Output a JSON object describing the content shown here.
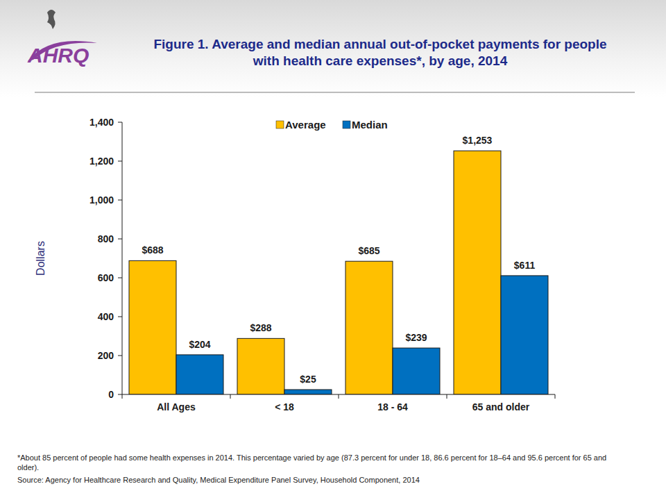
{
  "chart_data": {
    "type": "bar",
    "title": "Figure 1. Average and median annual out-of-pocket payments for people with health care expenses*, by age, 2014",
    "logo": "AHRQ",
    "y_label": "Dollars",
    "note": "*About 85 percent of people had some health expenses in 2014. This percentage varied by age (87.3 percent for under 18, 86.6 percent for 18–64 and 95.6 percent for 65 and older).",
    "source": "Source: Agency for Healthcare Research and Quality, Medical Expenditure Panel Survey, Household Component, 2014",
    "categories": [
      "All Ages",
      "< 18",
      "18 - 64",
      "65 and older"
    ],
    "series": [
      {
        "name": "Average",
        "color": "#ffc000",
        "values": [
          688,
          288,
          685,
          1253
        ],
        "value_labels": [
          "$688",
          "$288",
          "$685",
          "$1,253"
        ]
      },
      {
        "name": "Median",
        "color": "#0070c0",
        "values": [
          204,
          25,
          239,
          611
        ],
        "value_labels": [
          "$204",
          "$25",
          "$239",
          "$611"
        ]
      }
    ],
    "ylim": [
      0,
      1400
    ],
    "yticks": [
      0,
      200,
      400,
      600,
      800,
      {
        "value": 1000,
        "label": "1,000"
      },
      {
        "value": 1200,
        "label": "1,200"
      },
      {
        "value": 1400,
        "label": "1,400"
      }
    ],
    "grid": false,
    "legend": "top",
    "data_labels": true
  }
}
